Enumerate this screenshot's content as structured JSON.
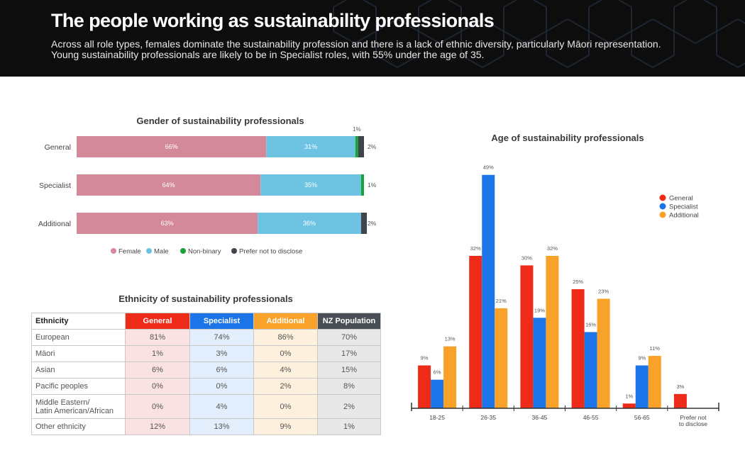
{
  "header": {
    "title": "The people working as sustainability professionals",
    "subtitle": "Across all role types, females dominate the sustainability profession and there is a lack of ethnic diversity, particularly Māori representation. Young sustainability professionals are likely to be in Specialist roles, with 55% under the age of 35."
  },
  "colors": {
    "female": "#d4899a",
    "male": "#6ec3e3",
    "nonbinary": "#1aa33a",
    "prefer": "#3f454b",
    "general": "#ee2a18",
    "specialist": "#1b74e8",
    "additional": "#f9a22a",
    "nz": "#4a4f55"
  },
  "chart_data": [
    {
      "type": "bar",
      "orientation": "horizontal-stacked",
      "title": "Gender of sustainability professionals",
      "categories": [
        "General",
        "Specialist",
        "Additional"
      ],
      "series": [
        {
          "name": "Female",
          "values": [
            66,
            64,
            63
          ],
          "labels": [
            "66%",
            "64%",
            "63%"
          ]
        },
        {
          "name": "Male",
          "values": [
            31,
            35,
            36
          ],
          "labels": [
            "31%",
            "35%",
            "36%"
          ]
        },
        {
          "name": "Non-binary",
          "values": [
            1,
            1,
            0
          ],
          "labels": [
            "1%",
            "1%",
            ""
          ]
        },
        {
          "name": "Prefer not to disclose",
          "values": [
            2,
            0,
            2
          ],
          "labels": [
            "2%",
            "",
            "2%"
          ]
        }
      ],
      "legend": "bottom"
    },
    {
      "type": "table",
      "title": "Ethnicity of sustainability professionals",
      "columns": [
        "Ethnicity",
        "General",
        "Specialist",
        "Additional",
        "NZ Population"
      ],
      "rows": [
        {
          "label": "European",
          "values": [
            "81%",
            "74%",
            "86%",
            "70%"
          ]
        },
        {
          "label": "Māori",
          "values": [
            "1%",
            "3%",
            "0%",
            "17%"
          ]
        },
        {
          "label": "Asian",
          "values": [
            "6%",
            "6%",
            "4%",
            "15%"
          ]
        },
        {
          "label": "Pacific peoples",
          "values": [
            "0%",
            "0%",
            "2%",
            "8%"
          ]
        },
        {
          "label1": "Middle Eastern/",
          "label2": "Latin American/African",
          "values": [
            "0%",
            "4%",
            "0%",
            "2%"
          ]
        },
        {
          "label": "Other ethnicity",
          "values": [
            "12%",
            "13%",
            "9%",
            "1%"
          ]
        }
      ]
    },
    {
      "type": "bar",
      "title": "Age of sustainability professionals",
      "categories": [
        "18-25",
        "26-35",
        "36-45",
        "46-55",
        "56-65",
        "Prefer not to disclose"
      ],
      "category_lines": [
        [
          "18-25"
        ],
        [
          "26-35"
        ],
        [
          "36-45"
        ],
        [
          "46-55"
        ],
        [
          "56-65"
        ],
        [
          "Prefer not",
          "to disclose"
        ]
      ],
      "series": [
        {
          "name": "General",
          "values": [
            9,
            32,
            30,
            25,
            1,
            3
          ]
        },
        {
          "name": "Specialist",
          "values": [
            6,
            49,
            19,
            16,
            9,
            null
          ]
        },
        {
          "name": "Additional",
          "values": [
            13,
            21,
            32,
            23,
            11,
            null
          ]
        }
      ],
      "ylim": [
        0,
        50
      ],
      "grid": false,
      "legend": "top-right"
    }
  ]
}
